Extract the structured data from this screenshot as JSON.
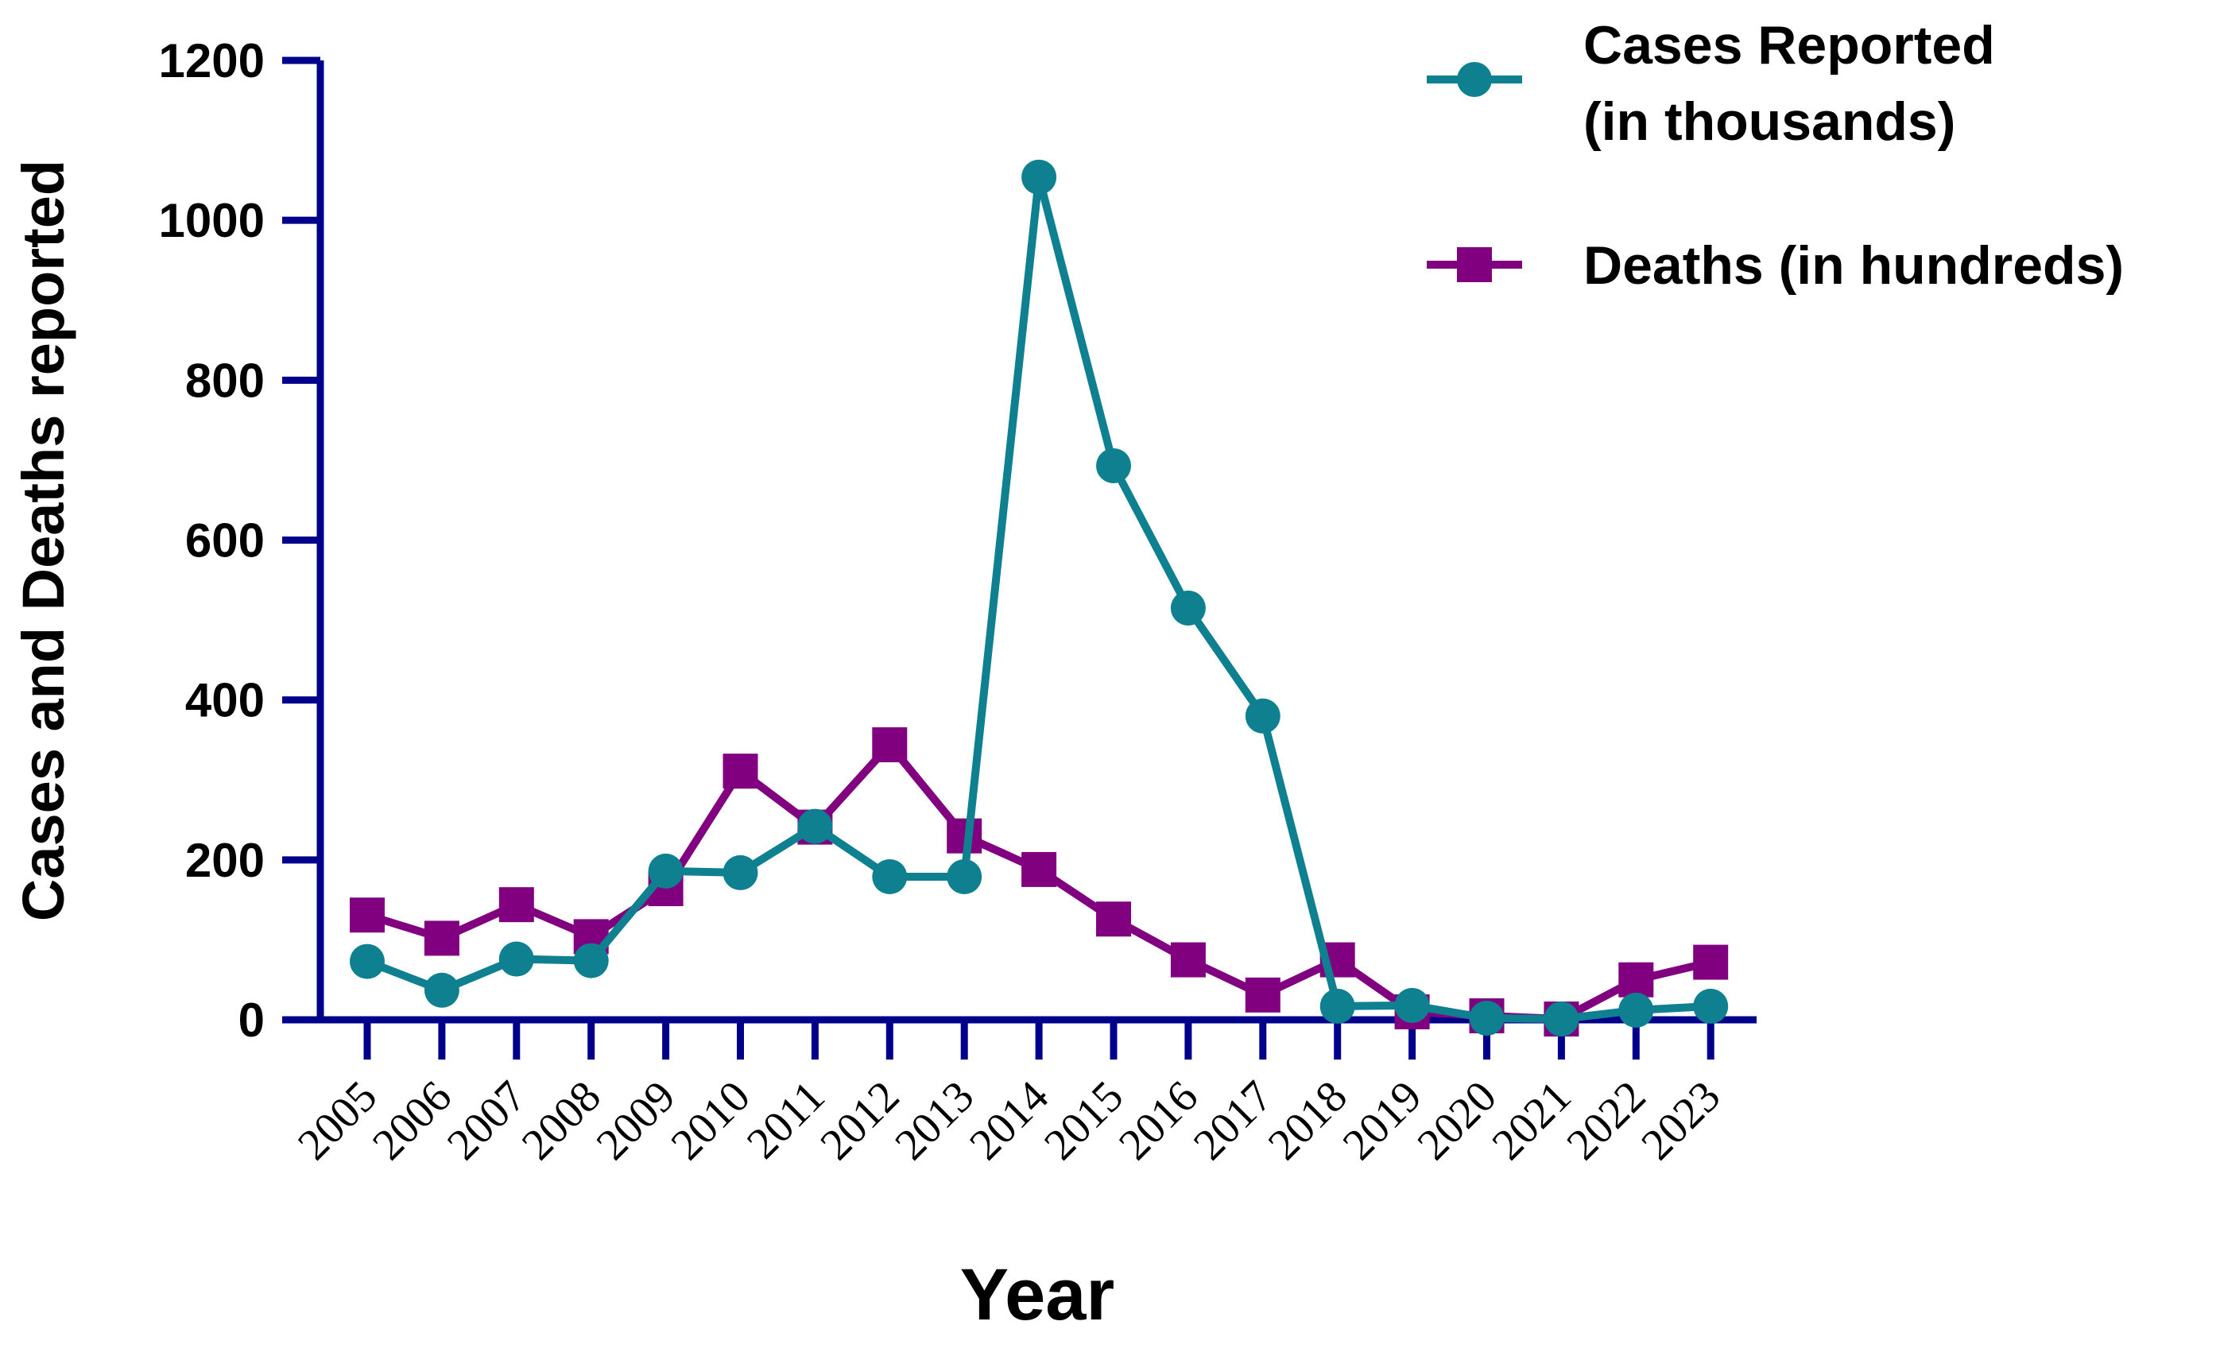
{
  "chart_data": {
    "type": "line",
    "title": "",
    "xlabel": "Year",
    "ylabel": "Cases and Deaths reported",
    "ylim": [
      0,
      1200
    ],
    "yticks": [
      0,
      200,
      400,
      600,
      800,
      1000,
      1200
    ],
    "categories": [
      "2005",
      "2006",
      "2007",
      "2008",
      "2009",
      "2010",
      "2011",
      "2012",
      "2013",
      "2014",
      "2015",
      "2016",
      "2017",
      "2018",
      "2019",
      "2020",
      "2021",
      "2022",
      "2023"
    ],
    "grid": false,
    "legend_position": "top-right",
    "series": [
      {
        "name": "Cases Reported (in thousands)",
        "legend_lines": [
          "Cases Reported",
          "(in thousands)"
        ],
        "marker": "circle",
        "color": "#0E8090",
        "values": [
          73,
          37,
          76,
          74,
          186,
          184,
          242,
          179,
          179,
          1054,
          693,
          515,
          380,
          17,
          18,
          2,
          1,
          12,
          17
        ]
      },
      {
        "name": "Deaths (in hundreds)",
        "legend_lines": [
          "Deaths (in hundreds)"
        ],
        "marker": "square",
        "color": "#800080",
        "values": [
          131,
          102,
          144,
          104,
          164,
          311,
          241,
          344,
          230,
          188,
          126,
          75,
          31,
          75,
          10,
          5,
          1,
          50,
          72
        ]
      }
    ],
    "axis_color": "#00008B"
  }
}
